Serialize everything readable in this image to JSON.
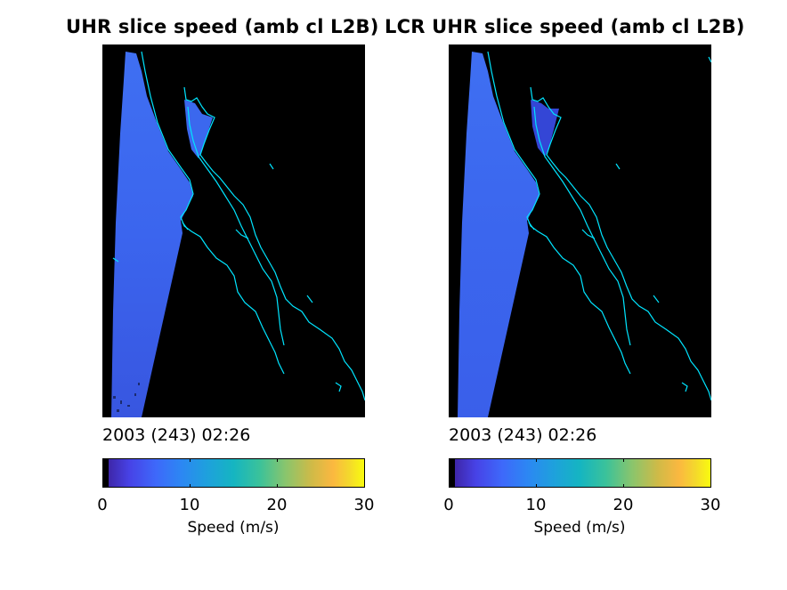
{
  "panels": [
    {
      "title": "UHR slice speed (amb cl L2B)",
      "timestamp": "2003 (243) 02:26",
      "colorbar": {
        "ticks": [
          "0",
          "10",
          "20",
          "30"
        ],
        "label": "Speed (m/s)"
      }
    },
    {
      "title": "LCR UHR slice speed (amb cl L2B)",
      "timestamp": "2003 (243) 02:26",
      "colorbar": {
        "ticks": [
          "0",
          "10",
          "20",
          "30"
        ],
        "label": "Speed (m/s)"
      }
    }
  ],
  "colormap": {
    "name": "parula",
    "range": [
      0,
      30
    ],
    "background_color": "#000000",
    "coastline_color": "#00e5ff",
    "swath_fill_color": "#3d6cf0",
    "inlet_fill_left": "#3a66ee",
    "inlet_fill_right": "#3548d8"
  }
}
